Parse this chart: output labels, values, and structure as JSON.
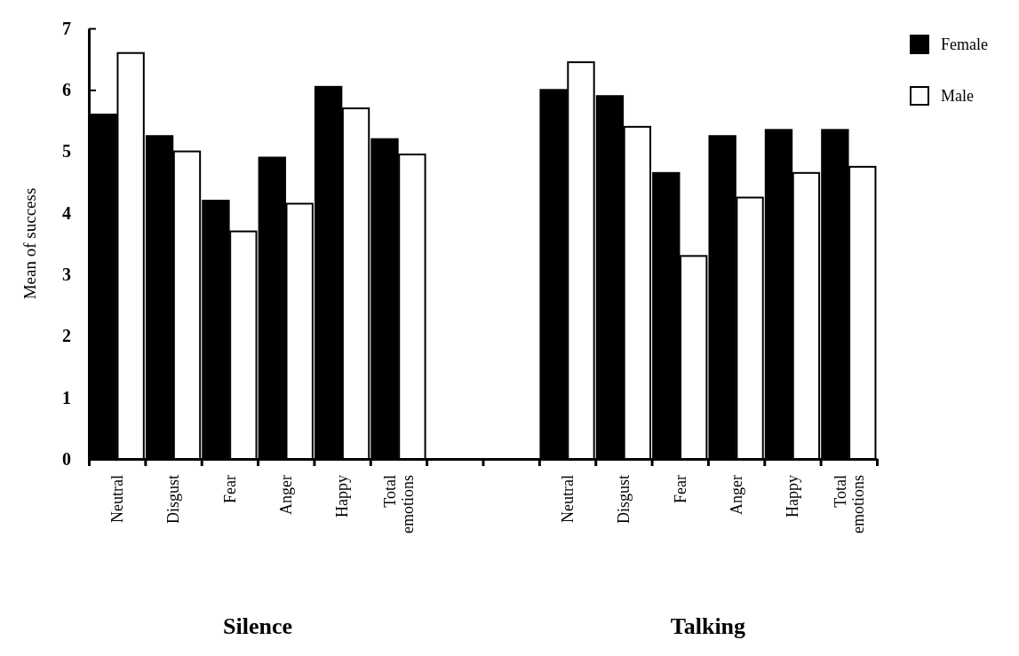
{
  "chart_data": {
    "type": "bar",
    "ylabel": "Mean of success",
    "categories": [
      "Neutral",
      "Disgust",
      "Fear",
      "Anger",
      "Happy",
      "Total emotions",
      null,
      null,
      "Neutral",
      "Disgust",
      "Fear",
      "Anger",
      "Happy",
      "Total emotions"
    ],
    "series": [
      {
        "name": "Female",
        "color": "#000000",
        "values": [
          5.6,
          5.25,
          4.2,
          4.9,
          6.05,
          5.2,
          null,
          null,
          6.0,
          5.9,
          4.65,
          5.25,
          5.35,
          5.35
        ]
      },
      {
        "name": "Male",
        "color": "#ffffff",
        "values": [
          6.6,
          5.0,
          3.7,
          4.15,
          5.7,
          4.95,
          null,
          null,
          6.45,
          5.4,
          3.3,
          4.25,
          4.65,
          4.75
        ]
      }
    ],
    "ylim": [
      0,
      7
    ],
    "yticks": [
      0,
      1,
      2,
      3,
      4,
      5,
      6,
      7
    ],
    "grid": false,
    "legend": "top right",
    "annotations": [
      "Silence",
      "Talking"
    ]
  }
}
